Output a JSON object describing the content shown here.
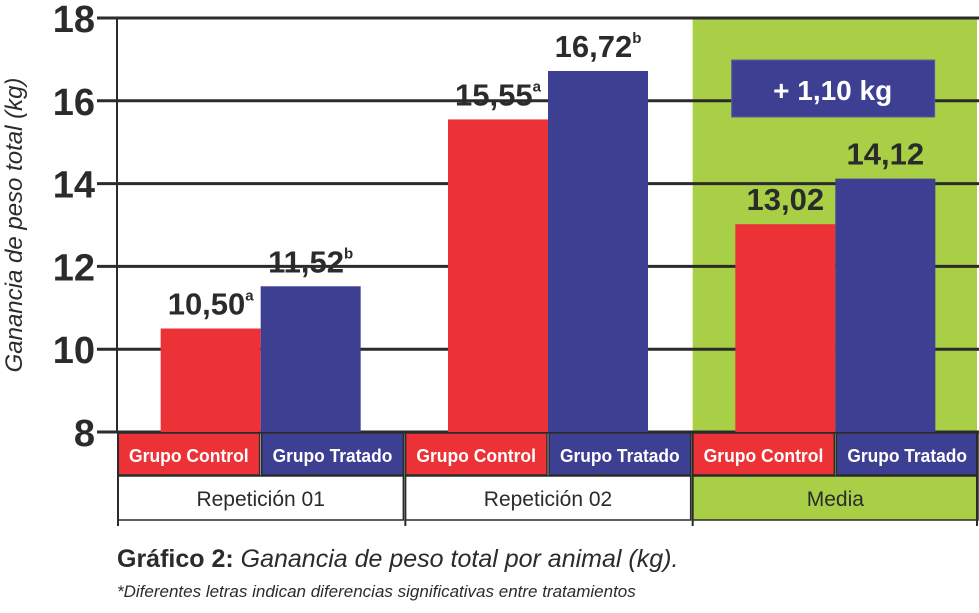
{
  "chart_data": {
    "type": "bar",
    "ylabel": "Ganancia de peso total (kg)",
    "ylim": [
      8,
      18
    ],
    "yticks": [
      8,
      10,
      12,
      14,
      16,
      18
    ],
    "grid": true,
    "groups": [
      {
        "label": "Repetición 01",
        "highlight": false,
        "bars": [
          {
            "category": "Grupo Control",
            "value": 10.5,
            "label": "10,50",
            "sup": "a"
          },
          {
            "category": "Grupo Tratado",
            "value": 11.52,
            "label": "11,52",
            "sup": "b"
          }
        ]
      },
      {
        "label": "Repetición 02",
        "highlight": false,
        "bars": [
          {
            "category": "Grupo Control",
            "value": 15.55,
            "label": "15,55",
            "sup": "a"
          },
          {
            "category": "Grupo Tratado",
            "value": 16.72,
            "label": "16,72",
            "sup": "b"
          }
        ]
      },
      {
        "label": "Media",
        "highlight": true,
        "bars": [
          {
            "category": "Grupo Control",
            "value": 13.02,
            "label": "13,02",
            "sup": ""
          },
          {
            "category": "Grupo Tratado",
            "value": 14.12,
            "label": "14,12",
            "sup": ""
          }
        ]
      }
    ],
    "annotation": "+ 1,10 kg",
    "colors": {
      "control": "#ec3237",
      "tratado": "#3d3f93",
      "highlight": "#a8cf45",
      "grid": "#2b2b2b",
      "text": "#2b2b2b"
    }
  },
  "caption": {
    "title_bold": "Gráfico 2:",
    "title_italic": " Ganancia de peso total por animal (kg).",
    "note": "*Diferentes letras indican diferencias significativas entre tratamientos"
  }
}
